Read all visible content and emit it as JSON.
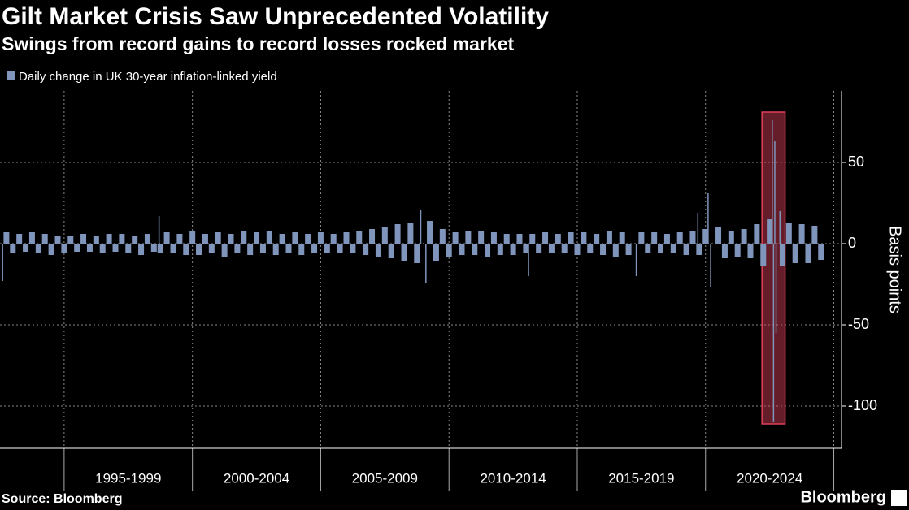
{
  "chart_data": {
    "type": "bar",
    "title": "Gilt Market Crisis Saw Unprecedented Volatility",
    "subtitle": "Swings from record gains to record losses rocked market",
    "series": [
      {
        "name": "Daily change in UK 30-year inflation-linked yield",
        "color": "#8095bb",
        "x": [
          1992.6,
          1992.75,
          1993,
          1993.25,
          1993.5,
          1993.75,
          1994,
          1994.25,
          1994.5,
          1994.75,
          1995,
          1995.25,
          1995.5,
          1995.75,
          1996,
          1996.25,
          1996.5,
          1996.75,
          1997,
          1997.25,
          1997.5,
          1997.75,
          1998,
          1998.25,
          1998.5,
          1998.7,
          1998.75,
          1999,
          1999.25,
          1999.5,
          1999.75,
          2000,
          2000.25,
          2000.5,
          2000.75,
          2001,
          2001.25,
          2001.5,
          2001.75,
          2002,
          2002.25,
          2002.5,
          2002.75,
          2003,
          2003.25,
          2003.5,
          2003.75,
          2004,
          2004.25,
          2004.5,
          2004.75,
          2005,
          2005.25,
          2005.5,
          2005.75,
          2006,
          2006.25,
          2006.5,
          2006.75,
          2007,
          2007.25,
          2007.5,
          2007.75,
          2008,
          2008.25,
          2008.5,
          2008.75,
          2008.9,
          2009.1,
          2009.25,
          2009.5,
          2009.75,
          2010,
          2010.25,
          2010.5,
          2010.75,
          2011,
          2011.25,
          2011.5,
          2011.75,
          2012,
          2012.25,
          2012.5,
          2012.75,
          2013,
          2013.1,
          2013.25,
          2013.5,
          2013.75,
          2014,
          2014.25,
          2014.5,
          2014.75,
          2015,
          2015.25,
          2015.5,
          2015.75,
          2016,
          2016.25,
          2016.5,
          2016.75,
          2017,
          2017.3,
          2017.5,
          2017.75,
          2018,
          2018.25,
          2018.5,
          2018.75,
          2019,
          2019.25,
          2019.5,
          2019.7,
          2019.75,
          2020,
          2020.1,
          2020.2,
          2020.5,
          2020.75,
          2021,
          2021.25,
          2021.5,
          2021.75,
          2022,
          2022.25,
          2022.5,
          2022.6,
          2022.65,
          2022.7,
          2022.75,
          2022.9,
          2023,
          2023.25,
          2023.5,
          2023.75,
          2024,
          2024.25,
          2024.5
        ],
        "values": [
          -23,
          7,
          -6,
          6,
          -5,
          7,
          -6,
          6,
          -7,
          5,
          -6,
          5,
          -5,
          6,
          -5,
          5,
          -6,
          6,
          -5,
          6,
          -6,
          5,
          -7,
          6,
          -5,
          17,
          -6,
          7,
          -6,
          6,
          -7,
          8,
          -7,
          6,
          -6,
          7,
          -8,
          6,
          -6,
          8,
          -7,
          7,
          -6,
          8,
          -7,
          6,
          -6,
          7,
          -7,
          6,
          -6,
          7,
          -6,
          6,
          -6,
          7,
          -6,
          8,
          -7,
          9,
          -8,
          10,
          -9,
          12,
          -11,
          13,
          -12,
          21,
          -24,
          14,
          -11,
          9,
          -8,
          7,
          -7,
          8,
          -7,
          8,
          -8,
          7,
          -7,
          6,
          -7,
          6,
          -6,
          -20,
          6,
          -6,
          7,
          -6,
          6,
          -6,
          7,
          -7,
          7,
          -6,
          6,
          -7,
          8,
          -8,
          7,
          -7,
          -20,
          7,
          -6,
          7,
          -6,
          6,
          -6,
          7,
          -7,
          8,
          19,
          -7,
          9,
          31,
          -27,
          10,
          -9,
          8,
          -8,
          9,
          -9,
          12,
          -14,
          15,
          76,
          -110,
          63,
          -55,
          20,
          -14,
          13,
          -12,
          12,
          -12,
          11,
          -10
        ]
      }
    ],
    "xlim": [
      1992.5,
      2025.3
    ],
    "x_separators": [
      1995,
      2000,
      2005,
      2010,
      2015,
      2020,
      2025
    ],
    "periods": [
      "1995-1999",
      "2000-2004",
      "2005-2009",
      "2010-2014",
      "2015-2019",
      "2020-2024"
    ],
    "ylim": [
      -126,
      94
    ],
    "yticks": [
      -100,
      -50,
      0,
      50
    ],
    "y_label": "Basis points",
    "grid": true,
    "highlight": {
      "xlim": [
        2022.2,
        2023.1
      ],
      "ylim": [
        -111,
        81
      ],
      "color": "#e0405a"
    },
    "source": "Source: Bloomberg",
    "logo": "Bloomberg"
  }
}
